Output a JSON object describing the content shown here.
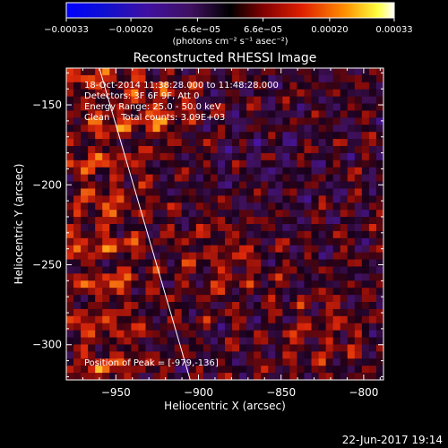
{
  "colorbar": {
    "tick_labels": [
      "−0.00033",
      "−0.00020",
      "−6.6e−05",
      "6.6e−05",
      "0.00020",
      "0.00033"
    ],
    "tick_values": [
      -0.00033,
      -0.0002,
      -6.6e-05,
      6.6e-05,
      0.0002,
      0.00033
    ],
    "range": [
      -0.00033,
      0.00033
    ],
    "units_text": "(photons cm⁻² s⁻¹ asec⁻²)"
  },
  "chart_data": {
    "type": "heatmap",
    "title": "Reconstructed RHESSI Image",
    "xlabel": "Heliocentric X (arcsec)",
    "ylabel": "Heliocentric Y (arcsec)",
    "xlim": [
      -980,
      -788
    ],
    "ylim": [
      -322,
      -127
    ],
    "x_ticks": [
      -950,
      -900,
      -850,
      -800
    ],
    "x_tick_labels": [
      "−950",
      "−900",
      "−850",
      "−800"
    ],
    "y_ticks": [
      -150,
      -200,
      -250,
      -300
    ],
    "y_tick_labels": [
      "−150",
      "−200",
      "−250",
      "−300"
    ],
    "grid": false,
    "peak_value": 0.00033,
    "peak_x": -979,
    "peak_y": -136,
    "limb_line": [
      [
        -960,
        -127
      ],
      [
        -905,
        -322
      ]
    ],
    "annotations": [
      "18-Oct-2014 11:38:28.000 to 11:48:28.000",
      "Detectors: 3F 6F 9F, Att 0",
      "Energy Range: 25.0 - 50.0 keV",
      "Clean    Total counts: 3.09E+03"
    ],
    "peak_label": "Position of Peak = [-979,-136]"
  },
  "footer": {
    "timestamp": "22-Jun-2017 19:14"
  },
  "colors": {
    "background": "#000000",
    "axes": "#ffffff"
  }
}
